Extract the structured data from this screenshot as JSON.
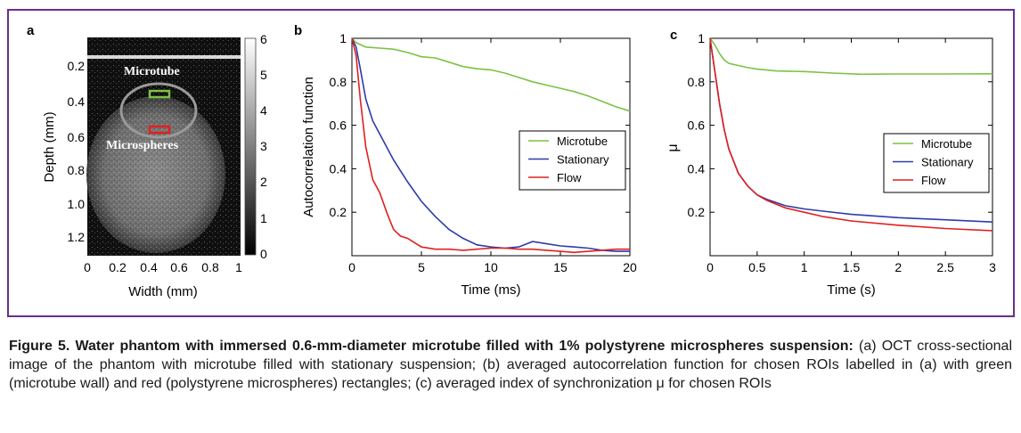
{
  "panels": {
    "a": {
      "letter": "a",
      "overlay_labels": [
        "Microtube",
        "Microspheres"
      ],
      "y_ticks": [
        "0.2",
        "0.4",
        "0.6",
        "0.8",
        "1.0",
        "1.2"
      ],
      "x_ticks": [
        "0",
        "0.2",
        "0.4",
        "0.6",
        "0.8",
        "1"
      ],
      "colorbar_ticks": [
        "0",
        "1",
        "2",
        "3",
        "4",
        "5",
        "6"
      ],
      "ylabel": "Depth (mm)",
      "xlabel": "Width (mm)",
      "roi_colors": {
        "microtube": "#7cc243",
        "microspheres": "#e02020"
      }
    },
    "b": {
      "letter": "b"
    },
    "c": {
      "letter": "c"
    }
  },
  "chart_data": [
    {
      "type": "line",
      "xlabel": "Time (ms)",
      "ylabel": "Autocorrelation function",
      "xlim": [
        0,
        20
      ],
      "ylim": [
        0,
        1
      ],
      "x_ticks": [
        0,
        5,
        10,
        15,
        20
      ],
      "y_ticks": [
        0.2,
        0.4,
        0.6,
        0.8,
        1
      ],
      "x_tick_labels": [
        "0",
        "5",
        "10",
        "15",
        "20"
      ],
      "y_tick_labels": [
        "0.2",
        "0.4",
        "0.6",
        "0.8",
        "1"
      ],
      "legend_position": "center-right",
      "series": [
        {
          "name": "Microtube",
          "color": "#7cc243",
          "x": [
            0,
            0.3,
            1,
            2,
            3,
            4,
            5,
            6,
            7,
            8,
            9,
            10,
            11,
            12,
            13,
            14,
            15,
            16,
            17,
            18,
            19,
            20
          ],
          "y": [
            1,
            0.98,
            0.96,
            0.955,
            0.95,
            0.935,
            0.915,
            0.91,
            0.89,
            0.87,
            0.86,
            0.855,
            0.84,
            0.82,
            0.8,
            0.785,
            0.77,
            0.755,
            0.735,
            0.71,
            0.685,
            0.665
          ]
        },
        {
          "name": "Stationary",
          "color": "#2e3ca8",
          "x": [
            0,
            0.3,
            0.6,
            1,
            1.5,
            2,
            3,
            4,
            5,
            6,
            7,
            8,
            9,
            10,
            11,
            12,
            13,
            14,
            15,
            16,
            17,
            18,
            19,
            20
          ],
          "y": [
            1,
            0.96,
            0.86,
            0.72,
            0.62,
            0.56,
            0.44,
            0.34,
            0.25,
            0.18,
            0.12,
            0.08,
            0.05,
            0.04,
            0.035,
            0.04,
            0.065,
            0.055,
            0.045,
            0.04,
            0.035,
            0.025,
            0.02,
            0.02
          ]
        },
        {
          "name": "Flow",
          "color": "#e02020",
          "x": [
            0,
            0.3,
            0.6,
            1,
            1.5,
            2,
            2.5,
            3,
            3.5,
            4,
            5,
            6,
            7,
            8,
            9,
            10,
            11,
            12,
            13,
            14,
            15,
            16,
            17,
            18,
            19,
            20
          ],
          "y": [
            1,
            0.92,
            0.72,
            0.5,
            0.35,
            0.29,
            0.2,
            0.12,
            0.09,
            0.08,
            0.04,
            0.03,
            0.03,
            0.025,
            0.03,
            0.035,
            0.035,
            0.03,
            0.03,
            0.025,
            0.02,
            0.015,
            0.02,
            0.025,
            0.03,
            0.03
          ]
        }
      ]
    },
    {
      "type": "line",
      "xlabel": "Time (s)",
      "ylabel": "μ",
      "xlim": [
        0,
        3
      ],
      "ylim": [
        0,
        1
      ],
      "x_ticks": [
        0,
        0.5,
        1,
        1.5,
        2,
        2.5,
        3
      ],
      "y_ticks": [
        0.2,
        0.4,
        0.6,
        0.8,
        1
      ],
      "x_tick_labels": [
        "0",
        "0.5",
        "1",
        "1.5",
        "2",
        "2.5",
        "3"
      ],
      "y_tick_labels": [
        "0.2",
        "0.4",
        "0.6",
        "0.8",
        "1"
      ],
      "legend_position": "center-right",
      "series": [
        {
          "name": "Microtube",
          "color": "#7cc243",
          "x": [
            0,
            0.05,
            0.1,
            0.15,
            0.2,
            0.3,
            0.4,
            0.5,
            0.7,
            1,
            1.3,
            1.6,
            2,
            2.5,
            3
          ],
          "y": [
            1,
            0.97,
            0.93,
            0.9,
            0.885,
            0.875,
            0.865,
            0.858,
            0.85,
            0.847,
            0.84,
            0.835,
            0.836,
            0.836,
            0.837
          ]
        },
        {
          "name": "Stationary",
          "color": "#2e3ca8",
          "x": [
            0,
            0.05,
            0.1,
            0.15,
            0.2,
            0.3,
            0.4,
            0.5,
            0.6,
            0.8,
            1,
            1.2,
            1.5,
            2,
            2.5,
            3
          ],
          "y": [
            1,
            0.85,
            0.7,
            0.58,
            0.49,
            0.38,
            0.32,
            0.28,
            0.26,
            0.23,
            0.215,
            0.205,
            0.19,
            0.175,
            0.165,
            0.155
          ]
        },
        {
          "name": "Flow",
          "color": "#e02020",
          "x": [
            0,
            0.05,
            0.1,
            0.15,
            0.2,
            0.3,
            0.4,
            0.5,
            0.6,
            0.8,
            1,
            1.2,
            1.5,
            2,
            2.5,
            3
          ],
          "y": [
            1,
            0.85,
            0.7,
            0.58,
            0.49,
            0.38,
            0.32,
            0.28,
            0.255,
            0.22,
            0.2,
            0.18,
            0.16,
            0.14,
            0.125,
            0.115
          ]
        }
      ]
    }
  ],
  "caption": {
    "bold": "Figure 5. Water phantom with immersed 0.6-mm-diameter microtube filled with 1% polystyrene microspheres suspension:",
    "text": " (a) OCT cross-sectional image of the phantom with microtube filled with stationary suspension; (b) averaged autocorrelation function for chosen ROIs labelled in (a) with green (microtube wall) and red (polystyrene microspheres) rectangles; (c) averaged index of synchronization μ for chosen ROIs"
  }
}
